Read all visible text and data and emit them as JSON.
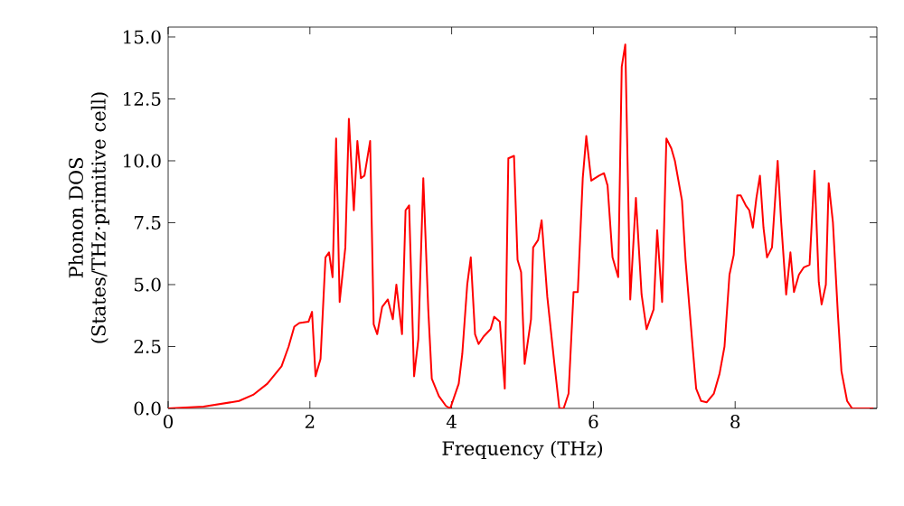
{
  "chart_data": {
    "type": "line",
    "xlabel": "Frequency (THz)",
    "ylabel": "Phonon DOS (States/THz·primitive cell)",
    "xlim": [
      0,
      10
    ],
    "ylim": [
      0,
      15.4
    ],
    "xticks": [
      0,
      2,
      4,
      6,
      8
    ],
    "yticks": [
      {
        "value": 0,
        "label": "0.0"
      },
      {
        "value": 2.5,
        "label": "2.5"
      },
      {
        "value": 5,
        "label": "5.0"
      },
      {
        "value": 7.5,
        "label": "7.5"
      },
      {
        "value": 10,
        "label": "10.0"
      },
      {
        "value": 12.5,
        "label": "12.5"
      },
      {
        "value": 15,
        "label": "15.0"
      }
    ],
    "grid": false,
    "marker": "none",
    "line_style": "solid",
    "series": [
      {
        "color": "#ff0000",
        "x": [
          0,
          0.5,
          1,
          1.2,
          1.4,
          1.6,
          1.7,
          1.78,
          1.85,
          1.98,
          2.03,
          2.08,
          2.15,
          2.22,
          2.27,
          2.32,
          2.37,
          2.42,
          2.5,
          2.55,
          2.62,
          2.67,
          2.72,
          2.77,
          2.85,
          2.9,
          2.95,
          3.02,
          3.1,
          3.17,
          3.22,
          3.3,
          3.35,
          3.4,
          3.47,
          3.53,
          3.6,
          3.67,
          3.72,
          3.82,
          3.92,
          3.98,
          4.1,
          4.15,
          4.22,
          4.27,
          4.33,
          4.38,
          4.45,
          4.55,
          4.6,
          4.68,
          4.75,
          4.8,
          4.88,
          4.93,
          4.98,
          5.03,
          5.12,
          5.15,
          5.22,
          5.27,
          5.35,
          5.45,
          5.52,
          5.58,
          5.65,
          5.72,
          5.78,
          5.85,
          5.9,
          5.97,
          6.08,
          6.15,
          6.2,
          6.27,
          6.35,
          6.4,
          6.45,
          6.52,
          6.6,
          6.68,
          6.75,
          6.85,
          6.9,
          6.97,
          7.03,
          7.1,
          7.15,
          7.25,
          7.3,
          7.4,
          7.45,
          7.52,
          7.6,
          7.7,
          7.78,
          7.85,
          7.92,
          7.98,
          8.03,
          8.08,
          8.15,
          8.2,
          8.25,
          8.3,
          8.35,
          8.4,
          8.45,
          8.52,
          8.6,
          8.65,
          8.72,
          8.78,
          8.83,
          8.9,
          8.97,
          9.05,
          9.12,
          9.18,
          9.22,
          9.28,
          9.32,
          9.38,
          9.45,
          9.5,
          9.58,
          9.65,
          9.95
        ],
        "values": [
          0,
          0.07,
          0.3,
          0.55,
          1.0,
          1.7,
          2.5,
          3.3,
          3.45,
          3.5,
          3.9,
          1.3,
          2.0,
          6.1,
          6.3,
          5.3,
          10.9,
          4.3,
          6.5,
          11.7,
          8.0,
          10.8,
          9.3,
          9.4,
          10.8,
          3.4,
          3.0,
          4.1,
          4.4,
          3.6,
          5.0,
          3.0,
          8.0,
          8.2,
          1.3,
          2.8,
          9.3,
          4.0,
          1.2,
          0.5,
          0.1,
          0.0,
          1.0,
          2.2,
          5.0,
          6.1,
          3.0,
          2.6,
          2.9,
          3.2,
          3.7,
          3.5,
          0.8,
          10.1,
          10.2,
          6.0,
          5.5,
          1.8,
          3.6,
          6.5,
          6.8,
          7.6,
          4.5,
          1.8,
          0.0,
          0.0,
          0.6,
          4.7,
          4.7,
          9.3,
          11.0,
          9.2,
          9.4,
          9.5,
          9.0,
          6.1,
          5.3,
          13.8,
          14.7,
          4.4,
          8.5,
          4.6,
          3.2,
          4.0,
          7.2,
          4.3,
          10.9,
          10.5,
          10.0,
          8.4,
          6.0,
          2.5,
          0.8,
          0.3,
          0.25,
          0.6,
          1.4,
          2.5,
          5.4,
          6.2,
          8.6,
          8.6,
          8.2,
          8.0,
          7.3,
          8.5,
          9.4,
          7.3,
          6.1,
          6.5,
          10.0,
          7.5,
          4.6,
          6.3,
          4.7,
          5.4,
          5.7,
          5.8,
          9.6,
          5.1,
          4.2,
          5.0,
          9.1,
          7.5,
          3.8,
          1.5,
          0.3,
          0.0,
          0.0
        ]
      }
    ]
  }
}
